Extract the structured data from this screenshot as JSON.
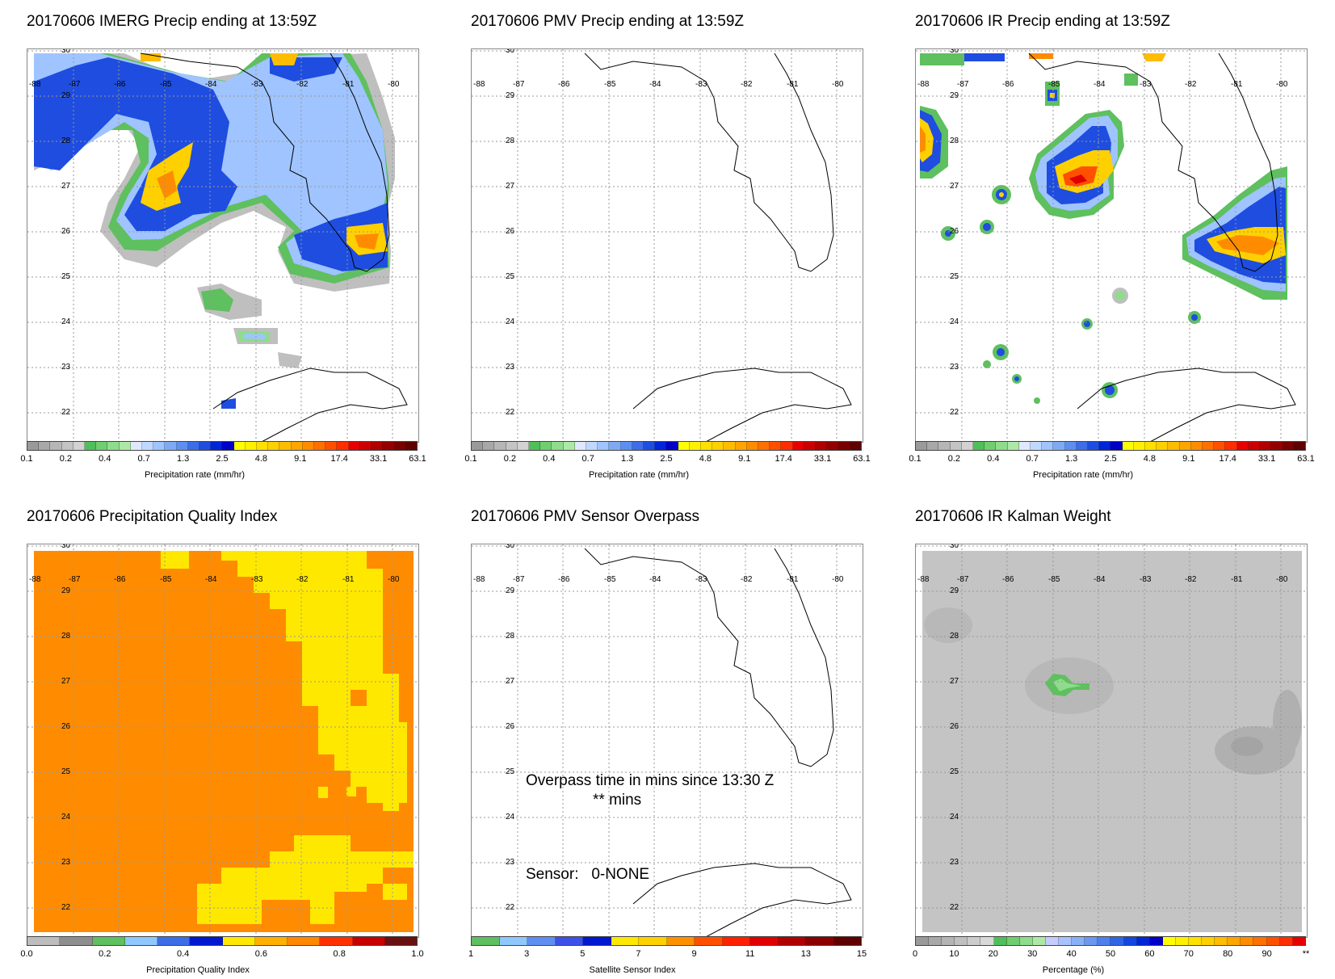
{
  "panels": [
    {
      "id": "imerg",
      "title": "20170606 IMERG Precip ending at 13:59Z",
      "colorbar": {
        "colors": [
          "#9a9a9a",
          "#a8a8a8",
          "#b6b6b6",
          "#c4c4c4",
          "#d2d2d2",
          "#4fbf5a",
          "#6fcf6f",
          "#8fdc8c",
          "#aee8a8",
          "#dfe8ff",
          "#c0d8ff",
          "#9fc4ff",
          "#7eaaf5",
          "#5e8ef0",
          "#3d6ee8",
          "#1e4de0",
          "#0026d8",
          "#0000c8",
          "#ffff00",
          "#fff000",
          "#ffe000",
          "#ffd000",
          "#ffbc00",
          "#ffa500",
          "#ff8c00",
          "#ff7000",
          "#ff5000",
          "#ff2e00",
          "#e80000",
          "#cc0000",
          "#b00000",
          "#940000",
          "#780000",
          "#600000"
        ],
        "ticks": [
          "0.1",
          "0.2",
          "0.4",
          "0.7",
          "1.3",
          "2.5",
          "4.8",
          "9.1",
          "17.4",
          "33.1",
          "63.1"
        ],
        "label": "Precipitation rate (mm/hr)"
      }
    },
    {
      "id": "pmv",
      "title": "20170606 PMV Precip ending at 13:59Z",
      "colorbar": {
        "colors": [
          "#9a9a9a",
          "#a8a8a8",
          "#b6b6b6",
          "#c4c4c4",
          "#d2d2d2",
          "#4fbf5a",
          "#6fcf6f",
          "#8fdc8c",
          "#aee8a8",
          "#dfe8ff",
          "#c0d8ff",
          "#9fc4ff",
          "#7eaaf5",
          "#5e8ef0",
          "#3d6ee8",
          "#1e4de0",
          "#0026d8",
          "#0000c8",
          "#ffff00",
          "#fff000",
          "#ffe000",
          "#ffd000",
          "#ffbc00",
          "#ffa500",
          "#ff8c00",
          "#ff7000",
          "#ff5000",
          "#ff2e00",
          "#e80000",
          "#cc0000",
          "#b00000",
          "#940000",
          "#780000",
          "#600000"
        ],
        "ticks": [
          "0.1",
          "0.2",
          "0.4",
          "0.7",
          "1.3",
          "2.5",
          "4.8",
          "9.1",
          "17.4",
          "33.1",
          "63.1"
        ],
        "label": "Precipitation rate (mm/hr)"
      }
    },
    {
      "id": "ir",
      "title": "20170606 IR Precip ending at 13:59Z",
      "colorbar": {
        "colors": [
          "#9a9a9a",
          "#a8a8a8",
          "#b6b6b6",
          "#c4c4c4",
          "#d2d2d2",
          "#4fbf5a",
          "#6fcf6f",
          "#8fdc8c",
          "#aee8a8",
          "#dfe8ff",
          "#c0d8ff",
          "#9fc4ff",
          "#7eaaf5",
          "#5e8ef0",
          "#3d6ee8",
          "#1e4de0",
          "#0026d8",
          "#0000c8",
          "#ffff00",
          "#fff000",
          "#ffe000",
          "#ffd000",
          "#ffbc00",
          "#ffa500",
          "#ff8c00",
          "#ff7000",
          "#ff5000",
          "#ff2e00",
          "#e80000",
          "#cc0000",
          "#b00000",
          "#940000",
          "#780000",
          "#600000"
        ],
        "ticks": [
          "0.1",
          "0.2",
          "0.4",
          "0.7",
          "1.3",
          "2.5",
          "4.8",
          "9.1",
          "17.4",
          "33.1",
          "63.1"
        ],
        "label": "Precipitation rate (mm/hr)"
      }
    },
    {
      "id": "pqi",
      "title": "20170606 Precipitation Quality Index",
      "colorbar": {
        "colors": [
          "#bdbdbd",
          "#8e8e8e",
          "#5ec05e",
          "#8fc8ff",
          "#3d6ee8",
          "#0018d0",
          "#ffe800",
          "#ffb000",
          "#ff8800",
          "#ff3000",
          "#c80000",
          "#6a1010"
        ],
        "ticks": [
          "0.0",
          "0.2",
          "0.4",
          "0.6",
          "0.8",
          "1.0"
        ],
        "label": "Precipitation Quality Index"
      }
    },
    {
      "id": "overpass",
      "title": "20170606 PMV Sensor Overpass",
      "overlay": {
        "line1": "Overpass time in mins since 13:30 Z",
        "line2": "** mins",
        "sensor": "Sensor:   0-NONE"
      },
      "colorbar": {
        "colors": [
          "#5ec05e",
          "#8fc8ff",
          "#5e8ef0",
          "#3d50e8",
          "#0018d0",
          "#ffe800",
          "#ffd000",
          "#ff9000",
          "#ff5000",
          "#ff2000",
          "#e00000",
          "#b00000",
          "#8a0000",
          "#600000"
        ],
        "ticks": [
          "1",
          "3",
          "5",
          "7",
          "9",
          "11",
          "13",
          "15"
        ],
        "label": "Satellite Sensor Index"
      }
    },
    {
      "id": "kalman",
      "title": "20170606 IR Kalman Weight",
      "colorbar": {
        "colors": [
          "#9a9a9a",
          "#a8a8a8",
          "#b4b4b4",
          "#c0c0c0",
          "#cccccc",
          "#d8d8d8",
          "#4fbf5a",
          "#6fcf6f",
          "#8fdc8c",
          "#aee8a8",
          "#c6ccff",
          "#a8c2ff",
          "#8ab0f8",
          "#6c98f2",
          "#4e80ec",
          "#3066e6",
          "#1248e0",
          "#0026d8",
          "#0000c8",
          "#ffff00",
          "#fff000",
          "#ffe000",
          "#ffd000",
          "#ffbc00",
          "#ffa500",
          "#ff8c00",
          "#ff7000",
          "#ff5000",
          "#ff2e00",
          "#e80000"
        ],
        "ticks": [
          "0",
          "10",
          "20",
          "30",
          "40",
          "50",
          "60",
          "70",
          "80",
          "90",
          "**"
        ],
        "label": "Percentage (%)"
      }
    }
  ],
  "map": {
    "lon_labels": [
      "-88",
      "-87",
      "-86",
      "-85",
      "-84",
      "-83",
      "-82",
      "-81",
      "-80"
    ],
    "lat_labels": [
      "30",
      "29",
      "28",
      "27",
      "26",
      "25",
      "24",
      "23",
      "22"
    ]
  },
  "colors": {
    "pqi_orange": "#ff8c00",
    "pqi_yellow": "#ffe800",
    "kalman_gray": "#c4c4c4",
    "coast": "#000000"
  }
}
